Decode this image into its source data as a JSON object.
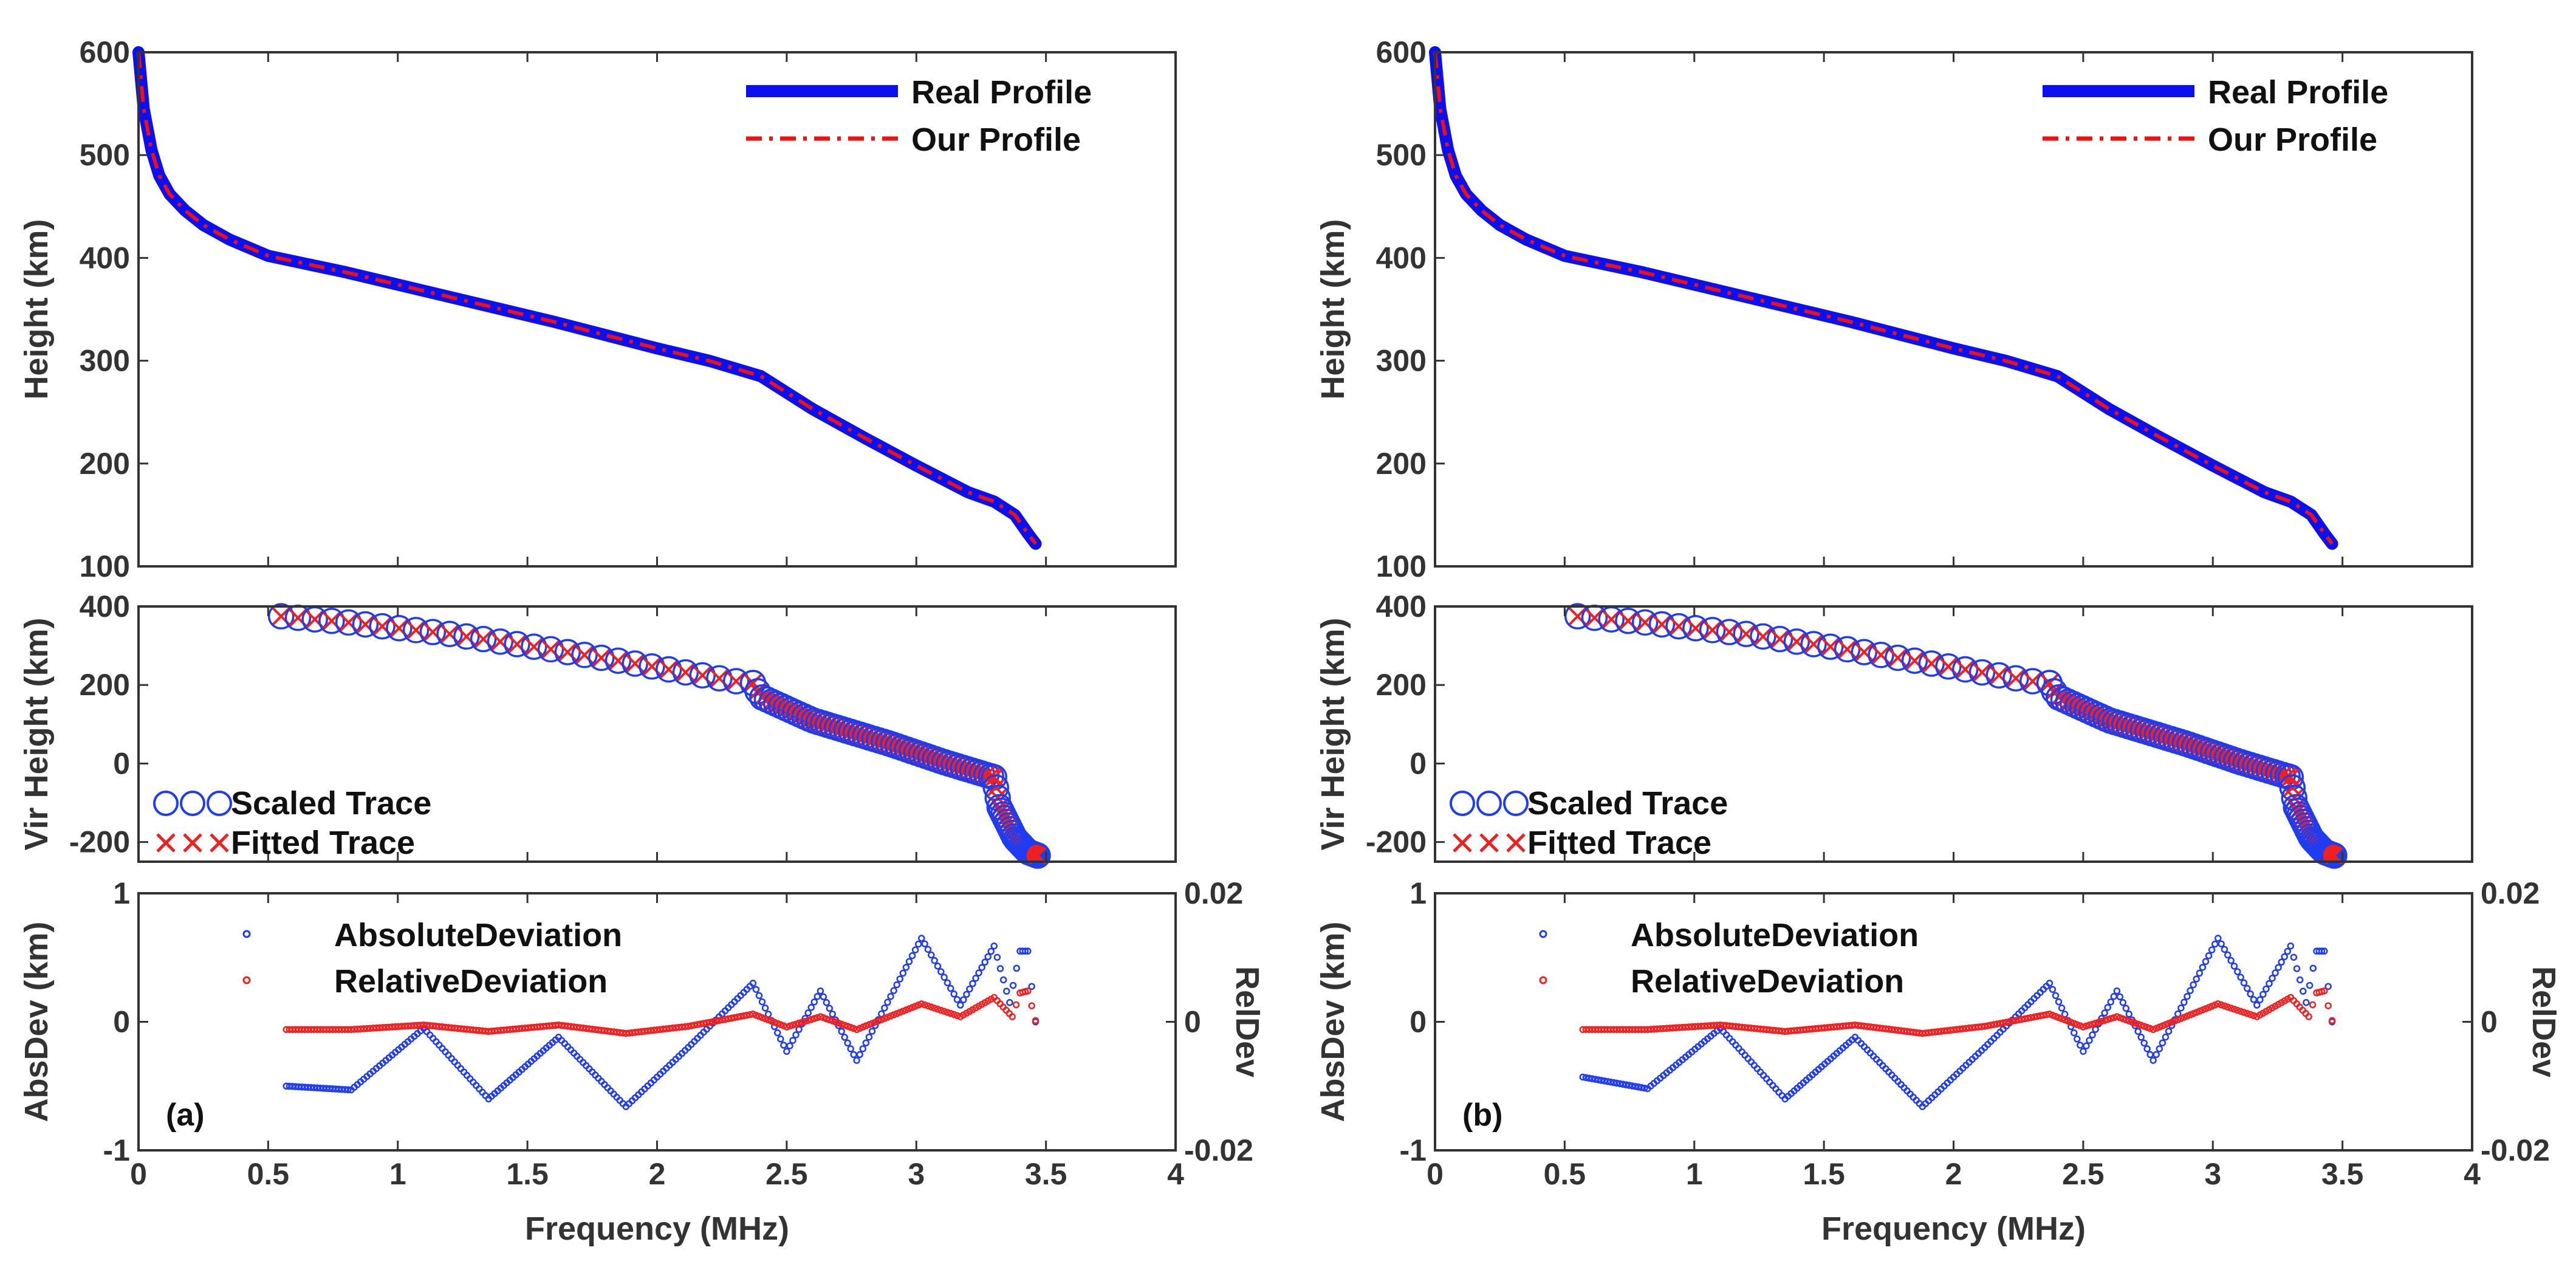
{
  "figure": {
    "xlabel": "Frequency (MHz)",
    "colors": {
      "real": "#0a10f0",
      "ours": "#f01010",
      "scaled": "#1f3cf2",
      "fitted": "#f02020",
      "abs": "#1f3cf2",
      "rel": "#f02020",
      "axes": "#333333"
    }
  },
  "chart_data": [
    {
      "panel": "a",
      "tag": "(a)",
      "profile": {
        "type": "line",
        "ylabel": "Height (km)",
        "xlim": [
          0,
          4
        ],
        "ylim": [
          100,
          600
        ],
        "xticks": [
          "0",
          "0.5",
          "1",
          "1.5",
          "2",
          "2.5",
          "3",
          "3.5",
          "4"
        ],
        "yticks": [
          "100",
          "200",
          "300",
          "400",
          "500",
          "600"
        ],
        "legend": [
          "Real Profile",
          "Our Profile"
        ],
        "x": [
          0.0,
          0.02,
          0.05,
          0.08,
          0.12,
          0.18,
          0.25,
          0.35,
          0.5,
          0.8,
          1.2,
          1.6,
          2.0,
          2.2,
          2.4,
          2.6,
          2.8,
          3.0,
          3.2,
          3.3,
          3.38,
          3.43,
          3.46
        ],
        "y": [
          600,
          545,
          505,
          480,
          462,
          446,
          432,
          418,
          402,
          386,
          362,
          338,
          312,
          300,
          285,
          253,
          225,
          198,
          172,
          163,
          150,
          132,
          122
        ]
      },
      "virtual": {
        "type": "scatter",
        "ylabel": "Vir Height (km)",
        "xlim": [
          0,
          4
        ],
        "ylim": [
          -250,
          400
        ],
        "yticks": [
          "-200",
          "0",
          "200",
          "400"
        ],
        "legend": [
          "Scaled Trace",
          "Fitted Trace"
        ],
        "curve_x": [
          0.55,
          0.8,
          1.2,
          1.6,
          2.0,
          2.3,
          2.37,
          2.4,
          2.6,
          2.9,
          3.1,
          3.3,
          3.32,
          3.38,
          3.43,
          3.47
        ],
        "curve_y": [
          375,
          360,
          330,
          290,
          245,
          210,
          205,
          170,
          110,
          50,
          5,
          -35,
          -110,
          -190,
          -225,
          -235
        ]
      },
      "deviation": {
        "type": "scatter",
        "ylabel": "AbsDev (km)",
        "y2label": "RelDev",
        "xlim": [
          0,
          4
        ],
        "ylim": [
          -1,
          1
        ],
        "y2lim": [
          -0.02,
          0.02
        ],
        "yticks": [
          "-1",
          "0",
          "1"
        ],
        "y2ticks": [
          "-0.02",
          "0",
          "0.02"
        ],
        "legend": [
          "AbsoluteDeviation",
          "RelativeDeviation"
        ],
        "abs_x": [
          0.57,
          0.82,
          1.1,
          1.35,
          1.62,
          1.88,
          2.12,
          2.37,
          2.5,
          2.63,
          2.77,
          3.02,
          3.17,
          3.3,
          3.36,
          3.4,
          3.43,
          3.46
        ],
        "abs_y": [
          -0.5,
          -0.53,
          -0.05,
          -0.6,
          -0.12,
          -0.66,
          -0.2,
          0.3,
          -0.23,
          0.24,
          -0.3,
          0.65,
          0.13,
          0.59,
          0.15,
          0.55,
          0.55,
          0.0
        ],
        "rel_x": [
          0.57,
          0.82,
          1.1,
          1.35,
          1.62,
          1.88,
          2.12,
          2.37,
          2.5,
          2.63,
          2.77,
          3.02,
          3.17,
          3.3,
          3.37,
          3.4,
          3.43,
          3.46
        ],
        "rel_y": [
          -0.0012,
          -0.0012,
          -0.0005,
          -0.0015,
          -0.0005,
          -0.0018,
          -0.0007,
          0.0012,
          -0.0008,
          0.0008,
          -0.0012,
          0.0028,
          0.0008,
          0.0038,
          0.0008,
          0.0045,
          0.0048,
          0.0002
        ]
      }
    },
    {
      "panel": "b",
      "tag": "(b)",
      "profile": {
        "type": "line",
        "ylabel": "Height (km)",
        "xlim": [
          0,
          4
        ],
        "ylim": [
          100,
          600
        ],
        "xticks": [
          "0",
          "0.5",
          "1",
          "1.5",
          "2",
          "2.5",
          "3",
          "3.5",
          "4"
        ],
        "yticks": [
          "100",
          "200",
          "300",
          "400",
          "500",
          "600"
        ],
        "legend": [
          "Real Profile",
          "Our Profile"
        ],
        "x": [
          0.0,
          0.02,
          0.05,
          0.08,
          0.12,
          0.18,
          0.25,
          0.35,
          0.5,
          0.8,
          1.2,
          1.6,
          2.0,
          2.2,
          2.4,
          2.6,
          2.8,
          3.0,
          3.2,
          3.3,
          3.38,
          3.43,
          3.46
        ],
        "y": [
          600,
          545,
          505,
          480,
          462,
          446,
          432,
          418,
          402,
          386,
          362,
          338,
          312,
          300,
          285,
          253,
          225,
          198,
          172,
          163,
          150,
          132,
          122
        ]
      },
      "virtual": {
        "type": "scatter",
        "ylabel": "Vir Height (km)",
        "xlim": [
          0,
          4
        ],
        "ylim": [
          -250,
          400
        ],
        "yticks": [
          "-200",
          "0",
          "200",
          "400"
        ],
        "legend": [
          "Scaled Trace",
          "Fitted Trace"
        ],
        "curve_x": [
          0.55,
          0.8,
          1.2,
          1.6,
          2.0,
          2.3,
          2.37,
          2.4,
          2.6,
          2.9,
          3.1,
          3.3,
          3.32,
          3.38,
          3.43,
          3.47
        ],
        "curve_y": [
          375,
          360,
          330,
          290,
          245,
          210,
          205,
          170,
          110,
          50,
          5,
          -35,
          -110,
          -190,
          -225,
          -235
        ]
      },
      "deviation": {
        "type": "scatter",
        "ylabel": "AbsDev (km)",
        "y2label": "RelDev",
        "xlim": [
          0,
          4
        ],
        "ylim": [
          -1,
          1
        ],
        "y2lim": [
          -0.02,
          0.02
        ],
        "yticks": [
          "-1",
          "0",
          "1"
        ],
        "y2ticks": [
          "-0.02",
          "0",
          "0.02"
        ],
        "legend": [
          "AbsoluteDeviation",
          "RelativeDeviation"
        ],
        "abs_x": [
          0.57,
          0.82,
          1.1,
          1.35,
          1.62,
          1.88,
          2.12,
          2.37,
          2.5,
          2.63,
          2.77,
          3.02,
          3.17,
          3.3,
          3.36,
          3.4,
          3.43,
          3.46
        ],
        "abs_y": [
          -0.43,
          -0.52,
          -0.05,
          -0.6,
          -0.12,
          -0.66,
          -0.2,
          0.3,
          -0.23,
          0.24,
          -0.3,
          0.65,
          0.13,
          0.59,
          0.15,
          0.55,
          0.55,
          0.0
        ],
        "rel_x": [
          0.57,
          0.82,
          1.1,
          1.35,
          1.62,
          1.88,
          2.12,
          2.37,
          2.5,
          2.63,
          2.77,
          3.02,
          3.17,
          3.3,
          3.37,
          3.4,
          3.43,
          3.46
        ],
        "rel_y": [
          -0.0012,
          -0.0012,
          -0.0005,
          -0.0015,
          -0.0005,
          -0.0018,
          -0.0007,
          0.0012,
          -0.0008,
          0.0008,
          -0.0012,
          0.0028,
          0.0008,
          0.0038,
          0.0008,
          0.0045,
          0.0048,
          0.0002
        ]
      }
    }
  ]
}
